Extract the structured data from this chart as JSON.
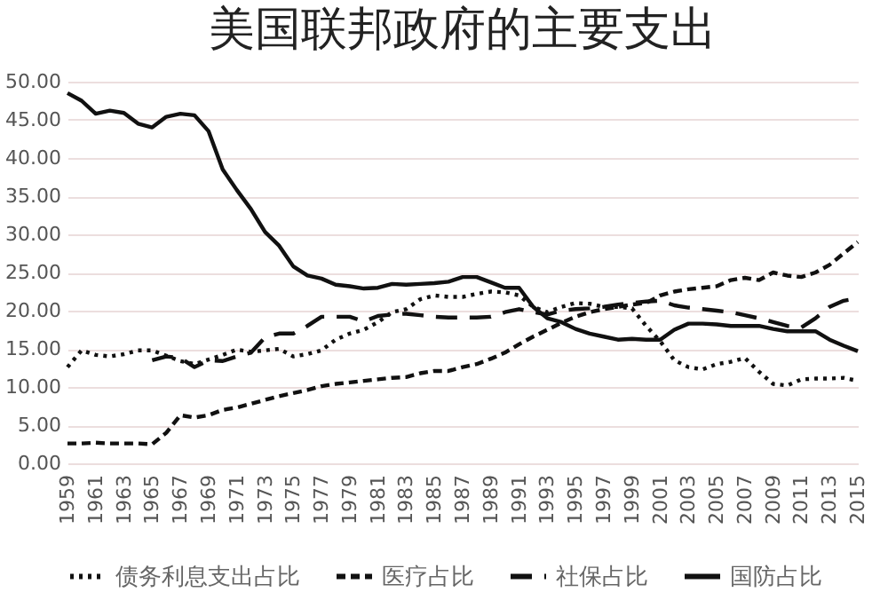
{
  "chart_data": {
    "type": "line",
    "title": "美国联邦政府的主要支出",
    "x": [
      1959,
      1960,
      1961,
      1962,
      1963,
      1964,
      1965,
      1966,
      1967,
      1968,
      1969,
      1970,
      1971,
      1972,
      1973,
      1974,
      1975,
      1976,
      1977,
      1978,
      1979,
      1980,
      1981,
      1982,
      1983,
      1984,
      1985,
      1986,
      1987,
      1988,
      1989,
      1990,
      1991,
      1992,
      1993,
      1994,
      1995,
      1996,
      1997,
      1998,
      1999,
      2000,
      2001,
      2002,
      2003,
      2004,
      2005,
      2006,
      2007,
      2008,
      2009,
      2010,
      2011,
      2012,
      2013,
      2014,
      2015
    ],
    "series": [
      {
        "name": "债务利息支出占比",
        "color": "#111111",
        "line_style": "dotted",
        "values": [
          12.6,
          14.8,
          14.2,
          14.0,
          14.3,
          14.8,
          14.8,
          14.1,
          13.4,
          13.0,
          13.6,
          14.2,
          14.9,
          14.6,
          14.8,
          15.0,
          14.0,
          14.3,
          14.8,
          16.2,
          17.0,
          17.5,
          18.5,
          19.8,
          20.2,
          21.5,
          22.0,
          21.8,
          21.8,
          22.2,
          22.5,
          22.4,
          22.0,
          20.5,
          19.8,
          20.5,
          21.0,
          20.9,
          20.5,
          20.5,
          20.3,
          18.0,
          16.0,
          13.5,
          12.6,
          12.3,
          13.0,
          13.3,
          13.8,
          12.0,
          10.4,
          10.2,
          11.0,
          11.1,
          11.1,
          11.2,
          10.8
        ]
      },
      {
        "name": "医疗占比",
        "color": "#111111",
        "line_style": "dashed",
        "values": [
          2.6,
          2.6,
          2.7,
          2.6,
          2.6,
          2.6,
          2.5,
          4.0,
          6.3,
          6.0,
          6.3,
          7.0,
          7.3,
          7.8,
          8.3,
          8.8,
          9.2,
          9.6,
          10.1,
          10.4,
          10.6,
          10.8,
          11.0,
          11.2,
          11.3,
          11.8,
          12.1,
          12.1,
          12.6,
          13.0,
          13.7,
          14.5,
          15.6,
          16.6,
          17.5,
          18.4,
          19.2,
          19.8,
          20.2,
          20.5,
          20.8,
          21.0,
          22.0,
          22.5,
          22.8,
          23.0,
          23.2,
          24.0,
          24.3,
          24.0,
          25.0,
          24.6,
          24.4,
          25.0,
          26.0,
          27.5,
          29.0
        ]
      },
      {
        "name": "社保占比",
        "color": "#111111",
        "line_style": "dashed",
        "values": [
          null,
          null,
          null,
          null,
          null,
          null,
          13.5,
          14.0,
          13.8,
          12.6,
          13.5,
          13.4,
          14.0,
          14.5,
          16.5,
          17.0,
          17.0,
          18.0,
          19.2,
          19.2,
          19.2,
          18.6,
          19.3,
          19.5,
          19.6,
          19.4,
          19.2,
          19.1,
          19.1,
          19.1,
          19.2,
          19.8,
          20.2,
          19.8,
          19.5,
          20.0,
          20.2,
          20.3,
          20.5,
          20.8,
          21.0,
          21.2,
          21.3,
          20.7,
          20.4,
          20.2,
          20.0,
          19.8,
          19.4,
          19.0,
          18.5,
          18.0,
          17.8,
          19.0,
          20.5,
          21.3,
          21.6
        ]
      },
      {
        "name": "国防占比",
        "color": "#111111",
        "line_style": "solid",
        "values": [
          48.5,
          47.5,
          45.8,
          46.2,
          45.9,
          44.5,
          44.0,
          45.4,
          45.8,
          45.6,
          43.5,
          38.5,
          35.8,
          33.3,
          30.3,
          28.5,
          25.8,
          24.6,
          24.2,
          23.4,
          23.2,
          22.9,
          23.0,
          23.5,
          23.4,
          23.5,
          23.6,
          23.8,
          24.4,
          24.4,
          23.7,
          23.0,
          23.0,
          20.5,
          19.0,
          18.5,
          17.6,
          17.0,
          16.6,
          16.2,
          16.3,
          16.2,
          16.2,
          17.5,
          18.3,
          18.3,
          18.2,
          18.0,
          18.0,
          18.0,
          17.6,
          17.3,
          17.3,
          17.3,
          16.2,
          15.4,
          14.7
        ]
      }
    ],
    "xlim": [
      1959,
      2015
    ],
    "xticks": [
      1959,
      1961,
      1963,
      1965,
      1967,
      1969,
      1971,
      1973,
      1975,
      1977,
      1979,
      1981,
      1983,
      1985,
      1987,
      1989,
      1991,
      1993,
      1995,
      1997,
      1999,
      2001,
      2003,
      2005,
      2007,
      2009,
      2011,
      2013,
      2015
    ],
    "ylim": [
      0,
      50
    ],
    "yticks": [
      {
        "value": 0,
        "label": "0.00"
      },
      {
        "value": 5,
        "label": "5.00"
      },
      {
        "value": 10,
        "label": "10.00"
      },
      {
        "value": 15,
        "label": "15.00"
      },
      {
        "value": 20,
        "label": "20.00"
      },
      {
        "value": 25,
        "label": "25.00"
      },
      {
        "value": 30,
        "label": "30.00"
      },
      {
        "value": 35,
        "label": "35.00"
      },
      {
        "value": 40,
        "label": "40.00"
      },
      {
        "value": 45,
        "label": "45.00"
      },
      {
        "value": 50,
        "label": "50.00"
      }
    ],
    "grid": "y",
    "legend": "bottom"
  }
}
